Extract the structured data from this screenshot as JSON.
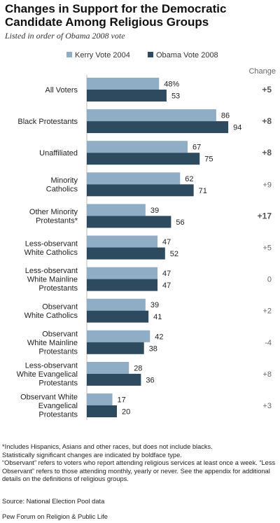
{
  "header": {
    "title": "Changes in Support for the Democratic Candidate Among Religious Groups",
    "subtitle": "Listed in order of Obama 2008 vote"
  },
  "legend": {
    "kerry": "Kerry Vote 2004",
    "obama": "Obama Vote 2008"
  },
  "change_header": "Change",
  "colors": {
    "kerry": "#8fadc4",
    "obama": "#2e4a5f",
    "label": "#222222",
    "change_sig": "#555555",
    "change_nonsig": "#666666"
  },
  "chart_data": {
    "type": "bar",
    "orientation": "horizontal",
    "categories": [
      [
        "All Voters"
      ],
      [
        "Black Protestants"
      ],
      [
        "Unaffiliated"
      ],
      [
        "Minority",
        "Catholics"
      ],
      [
        "Other Minority",
        "Protestants*"
      ],
      [
        "Less-observant",
        "White Catholics"
      ],
      [
        "Less-observant",
        "White Mainline",
        "Protestants"
      ],
      [
        "Observant",
        "White Catholics"
      ],
      [
        "Observant",
        "White Mainline",
        "Protestants"
      ],
      [
        "Less-observant",
        "White Evangelical",
        "Protestants"
      ],
      [
        "Observant White",
        "Evangelical",
        "Protestants"
      ]
    ],
    "series": [
      {
        "name": "Kerry Vote 2004",
        "values": [
          48,
          86,
          67,
          62,
          39,
          47,
          47,
          39,
          42,
          28,
          17
        ]
      },
      {
        "name": "Obama Vote 2008",
        "values": [
          53,
          94,
          75,
          71,
          56,
          52,
          47,
          41,
          38,
          36,
          20
        ]
      }
    ],
    "first_label_suffix": "%",
    "change": [
      "+5",
      "+8",
      "+8",
      "+9",
      "+17",
      "+5",
      "0",
      "+2",
      "-4",
      "+8",
      "+3"
    ],
    "change_significant": [
      true,
      true,
      true,
      false,
      true,
      false,
      false,
      false,
      false,
      false,
      false
    ],
    "xlim": [
      0,
      100
    ],
    "grid": false
  },
  "footnotes": {
    "line1": "*Includes Hispanics, Asians and other races, but does not include blacks.",
    "line2": "Statistically significant changes are indicated by boldface type.",
    "line3": "“Observant” refers to voters who report attending religious services at least once a week. “Less Observant” refers to those attending monthly, yearly or never. See the appendix for additional details on the definitions of religious groups."
  },
  "source": "Source: National Election Pool data",
  "credit": "Pew Forum on Religion & Public Life"
}
